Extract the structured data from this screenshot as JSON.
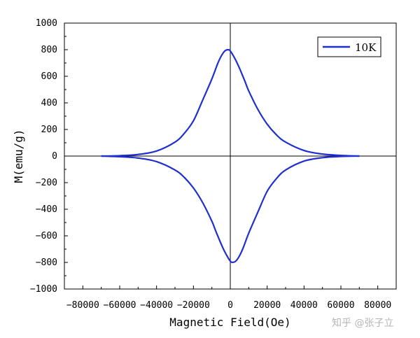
{
  "chart_data": {
    "type": "line",
    "title": "",
    "xlabel": "Magnetic Field(Oe)",
    "ylabel": "M(emu/g)",
    "xlim": [
      -90000,
      90000
    ],
    "ylim": [
      -1000,
      1000
    ],
    "x_ticks": [
      -80000,
      -60000,
      -40000,
      -20000,
      0,
      20000,
      40000,
      60000,
      80000
    ],
    "y_ticks": [
      -1000,
      -800,
      -600,
      -400,
      -200,
      0,
      200,
      400,
      600,
      800,
      1000
    ],
    "grid": false,
    "legend_position": "top-right",
    "zero_lines": true,
    "series": [
      {
        "name": "10K",
        "color": "#1f2fd0",
        "branches": [
          {
            "x": [
              -70000,
              -60000,
              -50000,
              -40000,
              -30000,
              -25000,
              -20000,
              -15000,
              -10000,
              -7000,
              -5000,
              -3000,
              -1000,
              0,
              1000,
              3000,
              5000,
              8000,
              10000,
              15000,
              20000,
              25000,
              30000,
              40000,
              50000,
              60000,
              70000
            ],
            "y": [
              0,
              3,
              12,
              38,
              105,
              170,
              265,
              420,
              580,
              690,
              750,
              790,
              800,
              790,
              770,
              720,
              660,
              560,
              490,
              350,
              240,
              160,
              105,
              42,
              15,
              5,
              0
            ]
          },
          {
            "x": [
              -70000,
              -60000,
              -50000,
              -40000,
              -30000,
              -25000,
              -20000,
              -15000,
              -10000,
              -8000,
              -5000,
              -3000,
              -1000,
              0,
              1000,
              3000,
              5000,
              7000,
              10000,
              15000,
              20000,
              25000,
              30000,
              40000,
              50000,
              60000,
              70000
            ],
            "y": [
              0,
              -5,
              -15,
              -42,
              -105,
              -160,
              -240,
              -350,
              -490,
              -560,
              -660,
              -720,
              -770,
              -790,
              -800,
              -790,
              -750,
              -690,
              -580,
              -420,
              -265,
              -170,
              -105,
              -38,
              -12,
              -3,
              0
            ]
          }
        ]
      }
    ]
  },
  "watermark": "知乎 @张子立"
}
